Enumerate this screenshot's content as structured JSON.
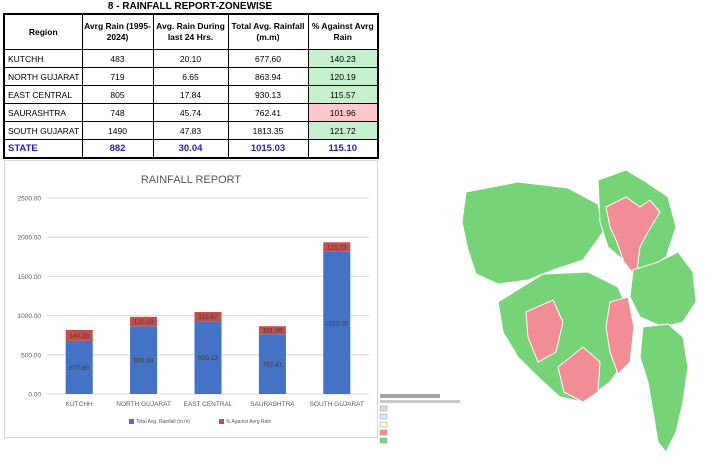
{
  "report": {
    "title": "8 - RAINFALL REPORT-ZONEWISE",
    "headers": [
      "Region",
      "Avrg Rain (1995-2024)",
      "Avg. Rain During last 24 Hrs.",
      "Total Avg. Rainfall (m.m)",
      "% Against Avrg Rain"
    ],
    "rows": [
      {
        "region": "KUTCHH",
        "avg": "483",
        "last24": "20.10",
        "total": "677.60",
        "pct": "140.23"
      },
      {
        "region": "NORTH GUJARAT",
        "avg": "719",
        "last24": "6.65",
        "total": "863.94",
        "pct": "120.19"
      },
      {
        "region": "EAST CENTRAL",
        "avg": "805",
        "last24": "17.84",
        "total": "930.13",
        "pct": "115.57"
      },
      {
        "region": "SAURASHTRA",
        "avg": "748",
        "last24": "45.74",
        "total": "762.41",
        "pct": "101.96"
      },
      {
        "region": "SOUTH GUJARAT",
        "avg": "1490",
        "last24": "47.83",
        "total": "1813.35",
        "pct": "121.72"
      }
    ],
    "state": {
      "region": "STATE",
      "avg": "882",
      "last24": "30.04",
      "total": "1015.03",
      "pct": "115.10"
    }
  },
  "colors": {
    "pct_high": "#c6efce",
    "pct_low": "#ffc7ce",
    "state_text": "#1f1fbf",
    "bar_total": "#4472c4",
    "bar_pct": "#c0504d",
    "map_green": "#77d377",
    "map_red": "#f08d95"
  },
  "chart_data": {
    "type": "bar",
    "stacked": true,
    "title": "RAINFALL REPORT",
    "categories": [
      "KUTCHH",
      "NORTH GUJARAT",
      "EAST CENTRAL",
      "SAURASHTRA",
      "SOUTH GUJARAT"
    ],
    "series": [
      {
        "name": "Total Avg. Rainfall (m.m)",
        "values": [
          677.6,
          863.94,
          930.13,
          762.41,
          1813.35
        ]
      },
      {
        "name": "% Against Avrg Rain",
        "values": [
          140.23,
          120.19,
          115.57,
          101.96,
          121.72
        ]
      }
    ],
    "ylim": [
      0,
      2500
    ],
    "yticks": [
      "0.00",
      "500.00",
      "1000.00",
      "1500.00",
      "2000.00",
      "2500.00"
    ],
    "grid": true,
    "legend_position": "bottom"
  }
}
